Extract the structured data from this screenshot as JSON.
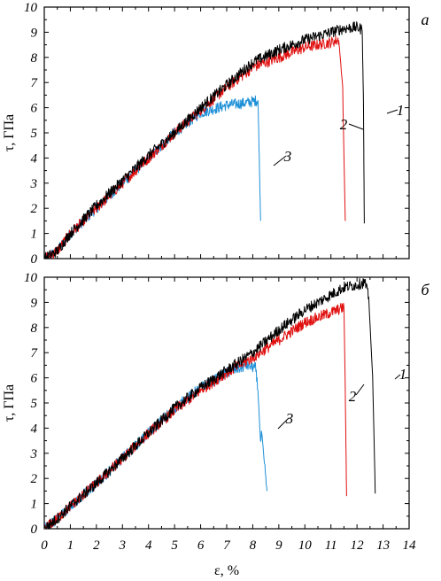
{
  "chart_data": [
    {
      "type": "line",
      "panel_label": "а",
      "ylabel": "τ, ГПа",
      "xlabel": "",
      "xlim": [
        0,
        14
      ],
      "ylim": [
        0,
        10
      ],
      "yticks": [
        "0",
        "1",
        "2",
        "3",
        "4",
        "5",
        "6",
        "7",
        "8",
        "9",
        "10"
      ],
      "xticks": [],
      "grid": false,
      "series": [
        {
          "name": "1",
          "color": "#000000",
          "x": [
            0,
            0.5,
            1,
            2,
            3,
            4,
            5,
            6,
            7,
            8,
            9,
            10,
            11,
            11.5,
            12,
            12.2,
            12.25,
            12.28
          ],
          "y": [
            0,
            0.3,
            1.0,
            2.1,
            3.1,
            4.1,
            5.0,
            6.0,
            6.9,
            7.8,
            8.3,
            8.7,
            9.0,
            9.15,
            9.2,
            9.1,
            6.0,
            1.4
          ]
        },
        {
          "name": "2",
          "color": "#e01010",
          "x": [
            0,
            0.5,
            1,
            2,
            3,
            4,
            5,
            6,
            7,
            8,
            9,
            10,
            11,
            11.3,
            11.45,
            11.55
          ],
          "y": [
            0,
            0.3,
            1.0,
            2.0,
            3.0,
            4.0,
            5.0,
            5.9,
            6.8,
            7.6,
            8.0,
            8.4,
            8.6,
            8.7,
            6.8,
            1.5
          ]
        },
        {
          "name": "3",
          "color": "#1e90d8",
          "x": [
            0,
            0.5,
            1,
            2,
            3,
            4,
            5,
            6,
            7,
            7.8,
            8.2,
            8.25,
            8.3
          ],
          "y": [
            0,
            0.3,
            1.0,
            2.0,
            3.0,
            4.0,
            5.0,
            5.8,
            6.1,
            6.2,
            6.3,
            4.0,
            1.5
          ]
        }
      ]
    },
    {
      "type": "line",
      "panel_label": "б",
      "ylabel": "τ, ГПа",
      "xlabel": "ε, %",
      "xlim": [
        0,
        14
      ],
      "ylim": [
        0,
        10
      ],
      "yticks": [
        "0",
        "1",
        "2",
        "3",
        "4",
        "5",
        "6",
        "7",
        "8",
        "9",
        "10"
      ],
      "xticks": [
        "0",
        "1",
        "2",
        "3",
        "4",
        "5",
        "6",
        "7",
        "8",
        "9",
        "10",
        "11",
        "12",
        "13",
        "14"
      ],
      "grid": false,
      "series": [
        {
          "name": "1",
          "color": "#000000",
          "x": [
            0,
            0.5,
            1,
            2,
            3,
            4,
            5,
            6,
            7,
            8,
            9,
            10,
            11,
            11.5,
            12,
            12.3,
            12.45,
            12.6,
            12.7
          ],
          "y": [
            0,
            0.4,
            0.9,
            1.8,
            2.8,
            3.8,
            4.8,
            5.6,
            6.3,
            7.0,
            7.9,
            8.7,
            9.3,
            9.6,
            9.7,
            9.8,
            9.2,
            6.0,
            1.4
          ]
        },
        {
          "name": "2",
          "color": "#e01010",
          "x": [
            0,
            0.5,
            1,
            2,
            3,
            4,
            5,
            6,
            7,
            8,
            9,
            10,
            11,
            11.5,
            11.55,
            11.6
          ],
          "y": [
            0,
            0.4,
            0.9,
            1.8,
            2.8,
            3.8,
            4.7,
            5.5,
            6.2,
            6.8,
            7.5,
            8.2,
            8.6,
            8.8,
            5.5,
            1.3
          ]
        },
        {
          "name": "3",
          "color": "#1e90d8",
          "x": [
            0,
            0.5,
            1,
            2,
            3,
            4,
            5,
            6,
            7,
            7.8,
            8.1,
            8.2,
            8.3,
            8.35,
            8.45,
            8.55
          ],
          "y": [
            0,
            0.4,
            0.9,
            1.8,
            2.8,
            3.8,
            4.8,
            5.6,
            6.2,
            6.5,
            6.4,
            5.5,
            3.4,
            3.8,
            2.5,
            1.5
          ]
        }
      ]
    }
  ]
}
